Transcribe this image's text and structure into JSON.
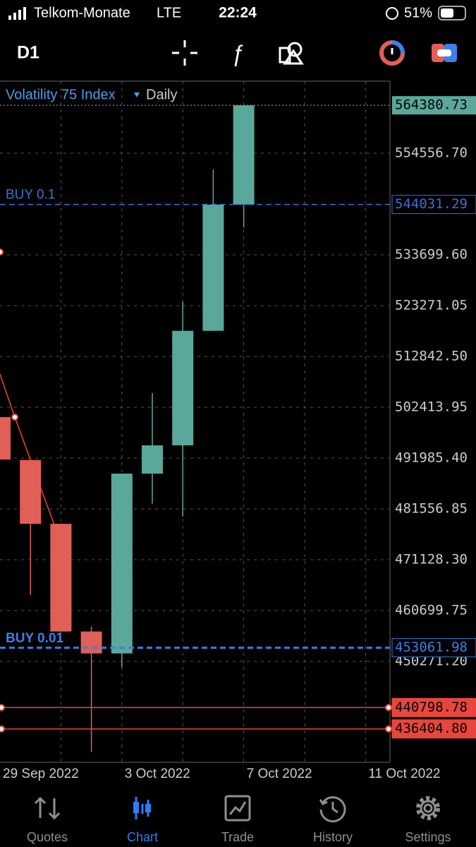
{
  "status_bar": {
    "carrier": "Telkom-Monate",
    "network": "LTE",
    "time": "22:24",
    "battery": "51%"
  },
  "toolbar": {
    "timeframe": "D1"
  },
  "chart_data": {
    "type": "candlestick",
    "title": "Volatility 75 Index",
    "subtitle": "Daily",
    "categories": [
      "29 Sep 2022",
      null,
      null,
      null,
      "3 Oct 2022",
      null,
      null,
      null,
      "7 Oct 2022",
      null,
      null,
      null,
      "11 Oct 2022"
    ],
    "open": [
      500400,
      491600,
      478500,
      456400,
      451900,
      488800,
      494600,
      518100,
      544000,
      null,
      null,
      null,
      null
    ],
    "high": [
      500400,
      491600,
      478500,
      457400,
      488800,
      505300,
      524100,
      551200,
      564380.73,
      null,
      null,
      null,
      null
    ],
    "low": [
      491700,
      463900,
      456400,
      431700,
      449000,
      482600,
      480000,
      518100,
      539300,
      null,
      null,
      null,
      null
    ],
    "close": [
      491700,
      478500,
      456400,
      451900,
      488800,
      494600,
      518100,
      544000,
      564380.73,
      null,
      null,
      null,
      null
    ],
    "up_color": "#5aa89c",
    "down_color": "#e06058",
    "ylim": [
      429560,
      569330
    ],
    "yticks": [
      {
        "value": 554556.7,
        "label": "554556.70"
      },
      {
        "value": 533699.6,
        "label": "533699.60"
      },
      523271.05,
      {
        "value": 512842.5,
        "label": "512842.50"
      },
      502413.95,
      {
        "value": 491985.4,
        "label": "491985.40"
      },
      481556.85,
      {
        "value": 471128.3,
        "label": "471128.30"
      },
      460699.75,
      {
        "value": 450271.2,
        "label": "450271.20"
      }
    ],
    "grid": true,
    "price_lines": [
      {
        "name": "BUY 0.1",
        "value": 544031.29,
        "color": "#3d6fd6"
      },
      {
        "name": "BUY 0.01",
        "value": 453061.98,
        "color": "#3d7fe8"
      },
      {
        "value": 440798.78,
        "color": "#e8453c"
      },
      {
        "value": 436404.8,
        "label": "436404.80",
        "color": "#e8453c"
      }
    ]
  },
  "tab_bar": {
    "tabs": [
      "Quotes",
      "Chart",
      "Trade",
      "History",
      "Settings"
    ],
    "active": 1
  }
}
